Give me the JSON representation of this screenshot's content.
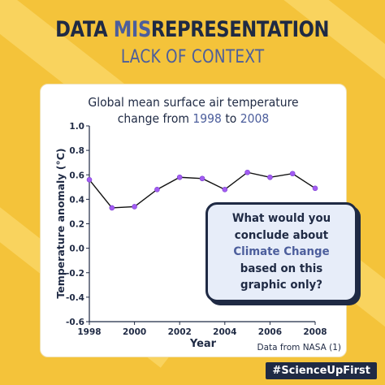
{
  "header": {
    "title_part1": "DATA ",
    "title_highlight": "MIS",
    "title_part2": "REPRESENTATION",
    "subtitle": "LACK OF CONTEXT"
  },
  "chart_title": {
    "line1": "Global mean surface air temperature",
    "line2_prefix": "change from ",
    "year_start": "1998",
    "line2_mid": " to ",
    "year_end": "2008"
  },
  "callout": {
    "part1": "What would you conclude about ",
    "emphasis": "Climate Change",
    "part2": " based on this graphic only?"
  },
  "source_note": "Data from NASA (1)",
  "hashtag": "#ScienceUpFirst",
  "colors": {
    "background": "#f4c33a",
    "navy": "#1f2a44",
    "accent_blue": "#4c5e9c",
    "point_fill": "#a35cf2"
  },
  "chart_data": {
    "type": "line",
    "title": "Global mean surface air temperature change from 1998 to 2008",
    "xlabel": "Year",
    "ylabel": "Temperature anomaly (°C)",
    "xlim": [
      1998,
      2008
    ],
    "ylim": [
      -0.6,
      1.0
    ],
    "x_ticks": [
      1998,
      2000,
      2002,
      2004,
      2006,
      2008
    ],
    "y_ticks": [
      1.0,
      0.8,
      0.6,
      0.4,
      0.2,
      0.0,
      -0.2,
      -0.4,
      -0.6
    ],
    "y_tick_labels": [
      "1.0",
      "0.8",
      "0.6",
      "0.4",
      "0.2",
      "0.0",
      "-0.2",
      "-0.4",
      "-0.6"
    ],
    "x": [
      1998,
      1999,
      2000,
      2001,
      2002,
      2003,
      2004,
      2005,
      2006,
      2007,
      2008
    ],
    "series": [
      {
        "values": [
          0.56,
          0.33,
          0.34,
          0.48,
          0.58,
          0.57,
          0.48,
          0.62,
          0.58,
          0.61,
          0.49
        ]
      }
    ],
    "grid": false,
    "legend": "none"
  }
}
